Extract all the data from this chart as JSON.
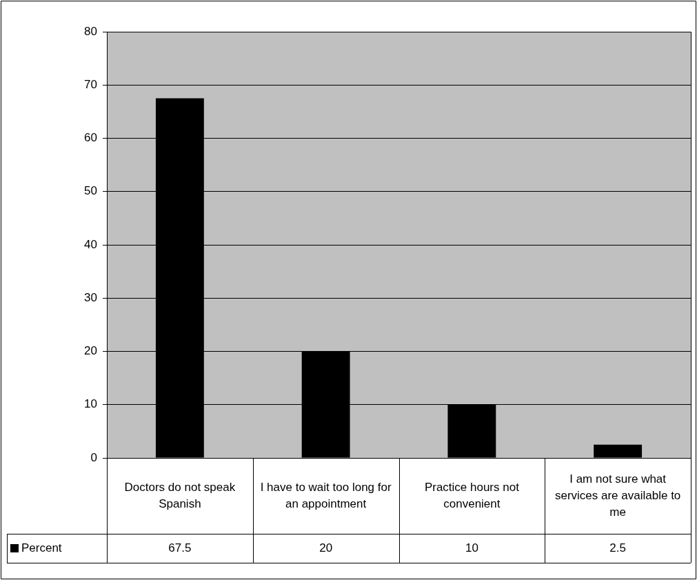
{
  "chart_data": {
    "type": "bar",
    "categories": [
      "Doctors do not speak Spanish",
      "I have to wait too long for an appointment",
      "Practice hours not convenient",
      "I am not sure what services are available to me"
    ],
    "series": [
      {
        "name": "Percent",
        "color": "#000000",
        "values": [
          67.5,
          20,
          10,
          2.5
        ]
      }
    ],
    "ylim": [
      0,
      80
    ],
    "yticks": [
      0,
      10,
      20,
      30,
      40,
      50,
      60,
      70,
      80
    ],
    "grid": "y",
    "legend": "bottom left",
    "data_labels": true
  }
}
